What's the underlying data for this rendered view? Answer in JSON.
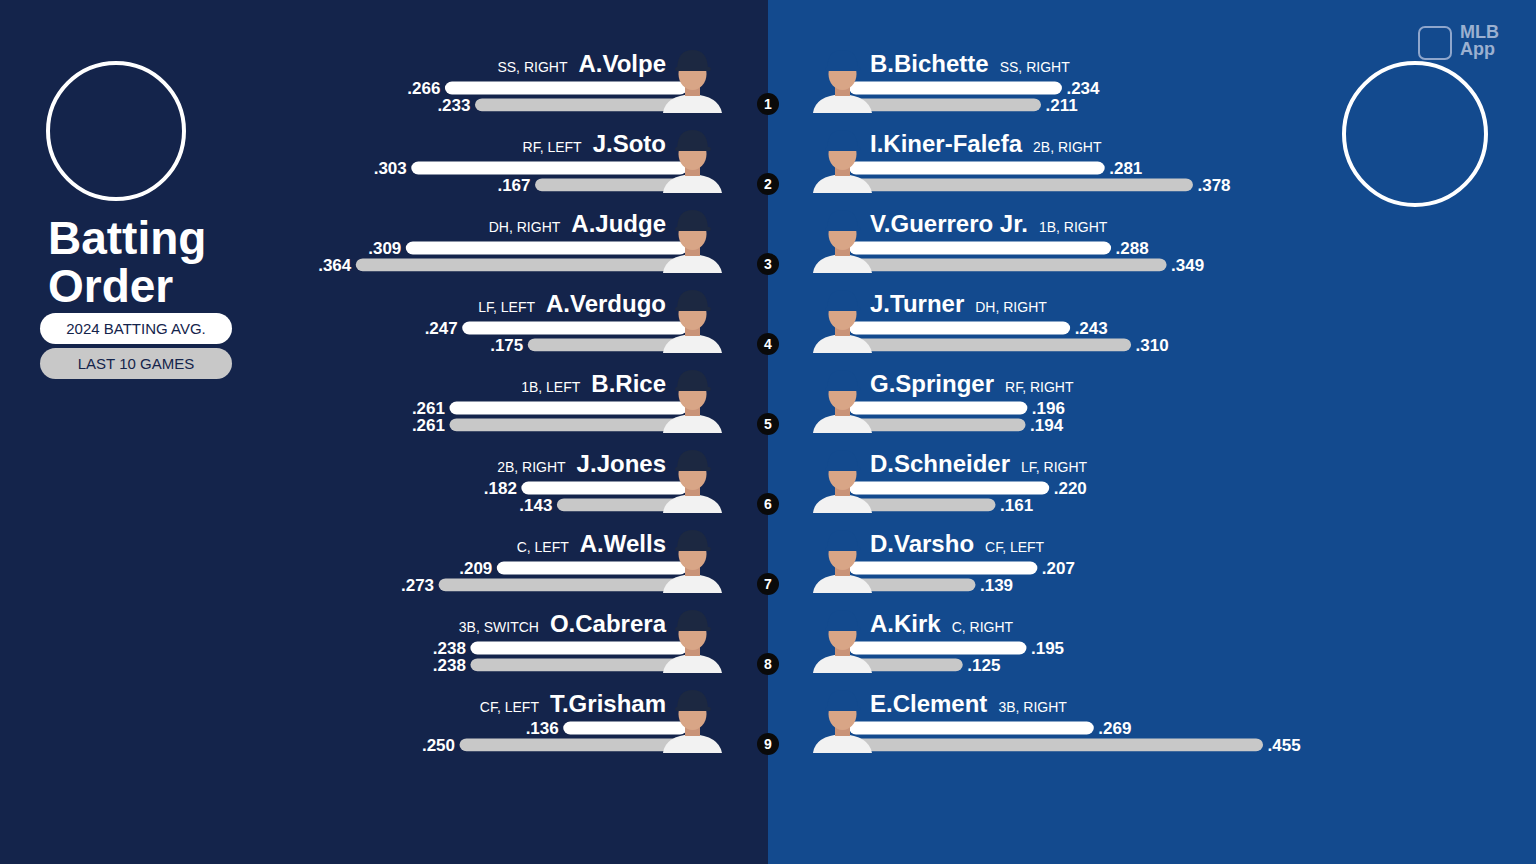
{
  "chart_data": {
    "type": "bar",
    "orientation": "horizontal",
    "title": "Batting Order",
    "source": "MLB App",
    "categories": [
      1,
      2,
      3,
      4,
      5,
      6,
      7,
      8,
      9
    ],
    "xlim": [
      0,
      0.5
    ],
    "tick_labels": false,
    "data_labels": true,
    "legend": "left",
    "panels": [
      {
        "players": [
          {
            "name": "A.Volpe",
            "detail": "SS, RIGHT"
          },
          {
            "name": "J.Soto",
            "detail": "RF, LEFT"
          },
          {
            "name": "A.Judge",
            "detail": "DH, RIGHT"
          },
          {
            "name": "A.Verdugo",
            "detail": "LF, LEFT"
          },
          {
            "name": "B.Rice",
            "detail": "1B, LEFT"
          },
          {
            "name": "J.Jones",
            "detail": "2B, RIGHT"
          },
          {
            "name": "A.Wells",
            "detail": "C, LEFT"
          },
          {
            "name": "O.Cabrera",
            "detail": "3B, SWITCH"
          },
          {
            "name": "T.Grisham",
            "detail": "CF, LEFT"
          }
        ],
        "series": [
          {
            "name": "2024 BATTING AVG.",
            "color": "#ffffff",
            "values": [
              0.266,
              0.303,
              0.309,
              0.247,
              0.261,
              0.182,
              0.209,
              0.238,
              0.136
            ],
            "value_labels": [
              ".266",
              ".303",
              ".309",
              ".247",
              ".261",
              ".182",
              ".209",
              ".238",
              ".136"
            ]
          },
          {
            "name": "LAST 10 GAMES",
            "color": "#c8c8c8",
            "values": [
              0.233,
              0.167,
              0.364,
              0.175,
              0.261,
              0.143,
              0.273,
              0.238,
              0.25
            ],
            "value_labels": [
              ".233",
              ".167",
              ".364",
              ".175",
              ".261",
              ".143",
              ".273",
              ".238",
              ".250"
            ]
          }
        ]
      },
      {
        "players": [
          {
            "name": "B.Bichette",
            "detail": "SS, RIGHT"
          },
          {
            "name": "I.Kiner-Falefa",
            "detail": "2B, RIGHT"
          },
          {
            "name": "V.Guerrero Jr.",
            "detail": "1B, RIGHT"
          },
          {
            "name": "J.Turner",
            "detail": "DH, RIGHT"
          },
          {
            "name": "G.Springer",
            "detail": "RF, RIGHT"
          },
          {
            "name": "D.Schneider",
            "detail": "LF, RIGHT"
          },
          {
            "name": "D.Varsho",
            "detail": "CF, LEFT"
          },
          {
            "name": "A.Kirk",
            "detail": "C, RIGHT"
          },
          {
            "name": "E.Clement",
            "detail": "3B, RIGHT"
          }
        ],
        "series": [
          {
            "name": "2024 BATTING AVG.",
            "color": "#ffffff",
            "values": [
              0.234,
              0.281,
              0.288,
              0.243,
              0.196,
              0.22,
              0.207,
              0.195,
              0.269
            ],
            "value_labels": [
              ".234",
              ".281",
              ".288",
              ".243",
              ".196",
              ".220",
              ".207",
              ".195",
              ".269"
            ]
          },
          {
            "name": "LAST 10 GAMES",
            "color": "#c8c8c8",
            "values": [
              0.211,
              0.378,
              0.349,
              0.31,
              0.194,
              0.161,
              0.139,
              0.125,
              0.455
            ],
            "value_labels": [
              ".211",
              ".378",
              ".349",
              ".310",
              ".194",
              ".161",
              ".139",
              ".125",
              ".455"
            ]
          }
        ]
      }
    ]
  }
}
